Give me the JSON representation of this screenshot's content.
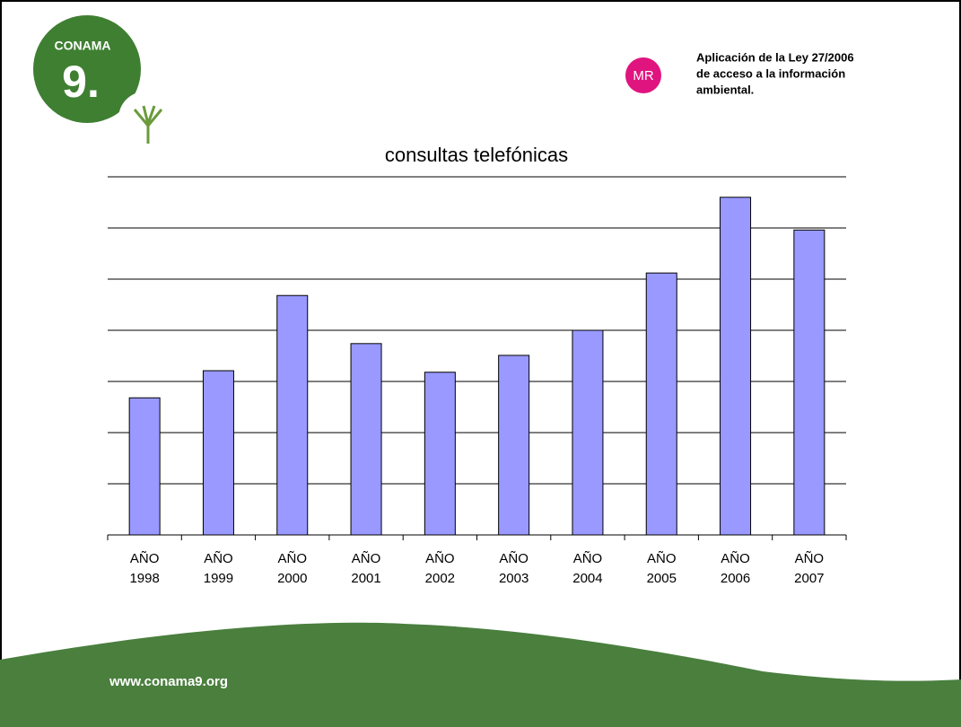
{
  "logo": {
    "name": "CONAMA",
    "number": "9."
  },
  "badge": "MR",
  "header_text": [
    "Aplicación de la Ley 27/2006",
    "de acceso a la información",
    "ambiental."
  ],
  "chart_data": {
    "type": "bar",
    "title": "consultas telefónicas",
    "categories": [
      [
        "AÑO",
        "1998"
      ],
      [
        "AÑO",
        "1999"
      ],
      [
        "AÑO",
        "2000"
      ],
      [
        "AÑO",
        "2001"
      ],
      [
        "AÑO",
        "2002"
      ],
      [
        "AÑO",
        "2003"
      ],
      [
        "AÑO",
        "2004"
      ],
      [
        "AÑO",
        "2005"
      ],
      [
        "AÑO",
        "2006"
      ],
      [
        "AÑO",
        "2007"
      ]
    ],
    "values": [
      2.68,
      3.21,
      4.68,
      3.74,
      3.18,
      3.51,
      4.0,
      5.12,
      6.6,
      5.96
    ],
    "color": "#9999ff",
    "ylim": [
      0,
      7
    ],
    "yticks": [
      1,
      2,
      3,
      4,
      5,
      6,
      7
    ],
    "grid": true
  },
  "footer": "www.conama9.org"
}
